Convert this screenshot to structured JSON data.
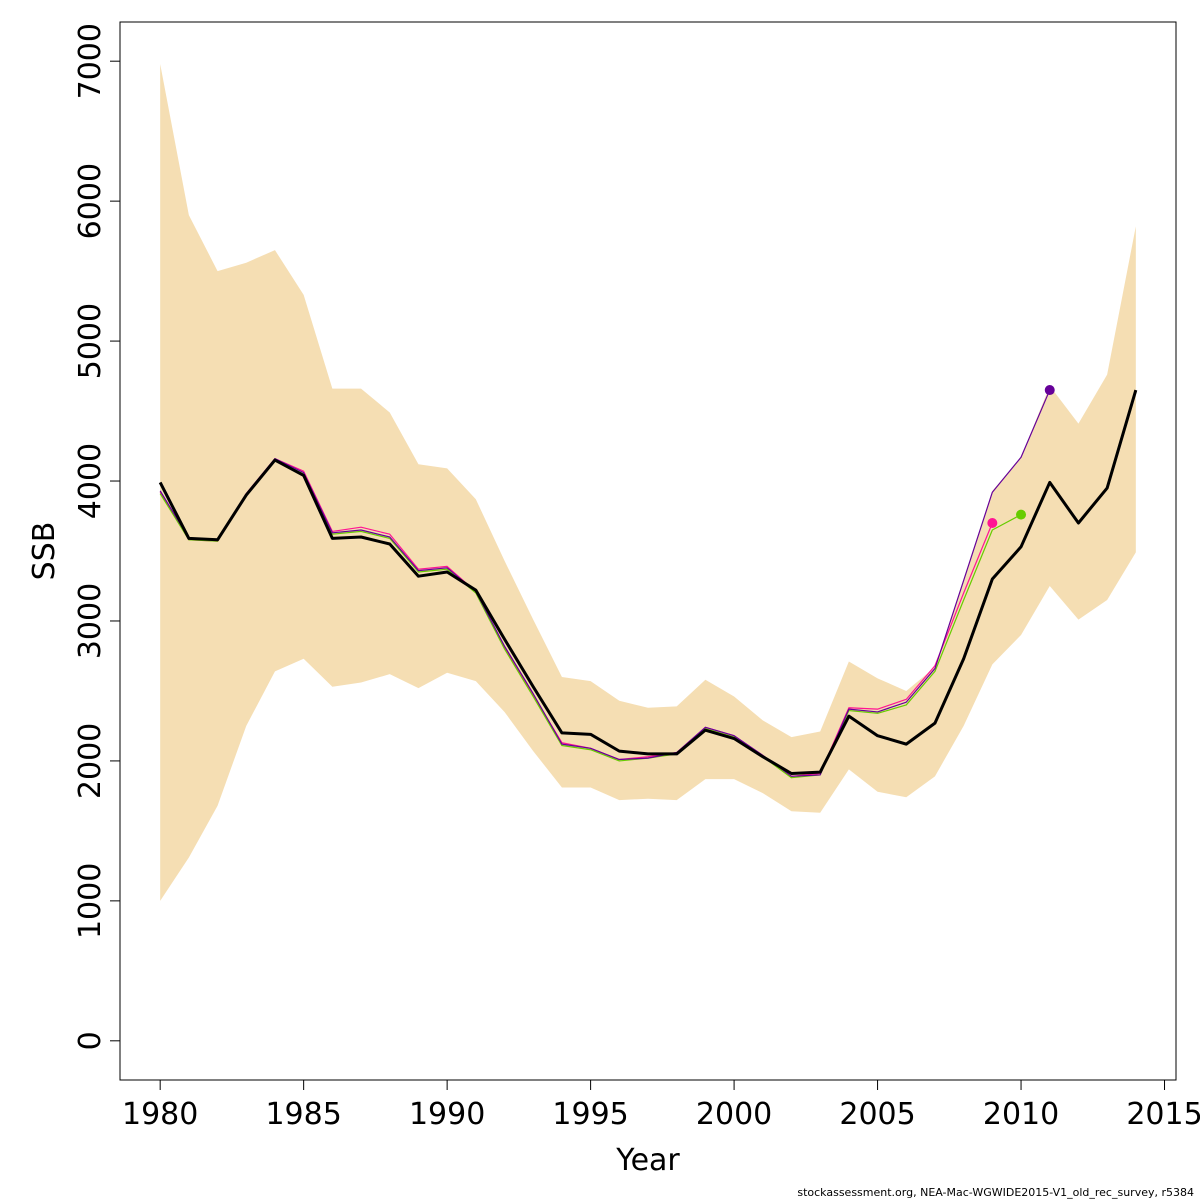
{
  "chart_data": {
    "type": "line",
    "xlabel": "Year",
    "ylabel": "SSB",
    "xlim": [
      1978.6,
      2015.4
    ],
    "ylim": [
      -280,
      7280
    ],
    "xticks": [
      1980,
      1985,
      1990,
      1995,
      2000,
      2005,
      2010,
      2015
    ],
    "yticks": [
      0,
      1000,
      2000,
      3000,
      4000,
      5000,
      6000,
      7000
    ],
    "confidence_band": {
      "color": "#F5DEB3",
      "x": [
        1980,
        1981,
        1982,
        1983,
        1984,
        1985,
        1986,
        1987,
        1988,
        1989,
        1990,
        1991,
        1992,
        1993,
        1994,
        1995,
        1996,
        1997,
        1998,
        1999,
        2000,
        2001,
        2002,
        2003,
        2004,
        2005,
        2006,
        2007,
        2008,
        2009,
        2010,
        2011,
        2012,
        2013,
        2014
      ],
      "upper": [
        6980,
        5900,
        5500,
        5560,
        5650,
        5330,
        4660,
        4660,
        4490,
        4120,
        4090,
        3870,
        3430,
        3010,
        2600,
        2570,
        2430,
        2380,
        2390,
        2580,
        2460,
        2290,
        2170,
        2210,
        2710,
        2590,
        2500,
        2670,
        3280,
        3930,
        4170,
        4680,
        4410,
        4760,
        5820
      ],
      "lower": [
        1000,
        1310,
        1680,
        2250,
        2640,
        2730,
        2530,
        2560,
        2620,
        2520,
        2630,
        2570,
        2350,
        2070,
        1810,
        1810,
        1720,
        1730,
        1720,
        1870,
        1870,
        1770,
        1640,
        1630,
        1940,
        1780,
        1740,
        1890,
        2250,
        2690,
        2900,
        3250,
        3010,
        3150,
        3490
      ]
    },
    "series": [
      {
        "color": "#000000",
        "x": [
          1980,
          1981,
          1982,
          1983,
          1984,
          1985,
          1986,
          1987,
          1988,
          1989,
          1990,
          1991,
          1992,
          1993,
          1994,
          1995,
          1996,
          1997,
          1998,
          1999,
          2000,
          2001,
          2002,
          2003,
          2004,
          2005,
          2006,
          2007,
          2008,
          2009,
          2010,
          2011,
          2012,
          2013,
          2014
        ],
        "values": [
          3990,
          3590,
          3580,
          3900,
          4150,
          4040,
          3590,
          3600,
          3550,
          3320,
          3350,
          3220,
          2870,
          2530,
          2200,
          2190,
          2070,
          2050,
          2050,
          2220,
          2160,
          2030,
          1910,
          1920,
          2320,
          2180,
          2120,
          2270,
          2730,
          3300,
          3530,
          3990,
          3700,
          3950,
          4650
        ]
      },
      {
        "color": "#FF1493",
        "x": [
          1980,
          1981,
          1982,
          1983,
          1984,
          1985,
          1986,
          1987,
          1988,
          1989,
          1990,
          1991,
          1992,
          1993,
          1994,
          1995,
          1996,
          1997,
          1998,
          1999,
          2000,
          2001,
          2002,
          2003,
          2004,
          2005,
          2006,
          2007,
          2008,
          2009
        ],
        "values": [
          3920,
          3580,
          3570,
          3910,
          4160,
          4070,
          3640,
          3670,
          3620,
          3370,
          3390,
          3210,
          2810,
          2470,
          2130,
          2090,
          2010,
          2030,
          2060,
          2240,
          2180,
          2040,
          1890,
          1910,
          2380,
          2370,
          2440,
          2680,
          3200,
          3700
        ],
        "endpoint": 3700
      },
      {
        "color": "#66CC00",
        "x": [
          1980,
          1981,
          1982,
          1983,
          1984,
          1985,
          1986,
          1987,
          1988,
          1989,
          1990,
          1991,
          1992,
          1993,
          1994,
          1995,
          1996,
          1997,
          1998,
          1999,
          2000,
          2001,
          2002,
          2003,
          2004,
          2005,
          2006,
          2007,
          2008,
          2009,
          2010
        ],
        "values": [
          3910,
          3580,
          3570,
          3900,
          4150,
          4050,
          3620,
          3640,
          3590,
          3350,
          3370,
          3200,
          2800,
          2460,
          2110,
          2080,
          2000,
          2020,
          2050,
          2230,
          2170,
          2030,
          1880,
          1900,
          2360,
          2340,
          2400,
          2640,
          3150,
          3650,
          3760
        ],
        "endpoint": 3760
      },
      {
        "color": "#660099",
        "x": [
          1980,
          1981,
          1982,
          1983,
          1984,
          1985,
          1986,
          1987,
          1988,
          1989,
          1990,
          1991,
          1992,
          1993,
          1994,
          1995,
          1996,
          1997,
          1998,
          1999,
          2000,
          2001,
          2002,
          2003,
          2004,
          2005,
          2006,
          2007,
          2008,
          2009,
          2010,
          2011
        ],
        "values": [
          3930,
          3590,
          3580,
          3910,
          4160,
          4060,
          3630,
          3650,
          3600,
          3360,
          3380,
          3210,
          2820,
          2480,
          2120,
          2090,
          2010,
          2020,
          2060,
          2240,
          2180,
          2040,
          1890,
          1900,
          2370,
          2350,
          2420,
          2660,
          3290,
          3920,
          4170,
          4650
        ],
        "endpoint": 4650
      }
    ]
  },
  "footer_text": "stockassessment.org, NEA-Mac-WGWIDE2015-V1_old_rec_survey, r5384"
}
